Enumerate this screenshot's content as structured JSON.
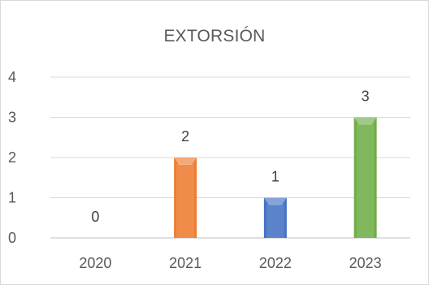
{
  "chart_data": {
    "type": "bar",
    "title": "EXTORSIÓN",
    "categories": [
      "2020",
      "2021",
      "2022",
      "2023"
    ],
    "values": [
      0,
      2,
      1,
      3
    ],
    "data_labels": [
      "0",
      "2",
      "1",
      "3"
    ],
    "ylim": [
      0,
      4
    ],
    "yticks": [
      0,
      1,
      2,
      3,
      4
    ],
    "ytick_labels": [
      "0",
      "1",
      "2",
      "3",
      "4"
    ],
    "grid": true,
    "legend": "none",
    "colors": [
      "#4472c4",
      "#ed7d31",
      "#4472c4",
      "#70ad47"
    ]
  }
}
